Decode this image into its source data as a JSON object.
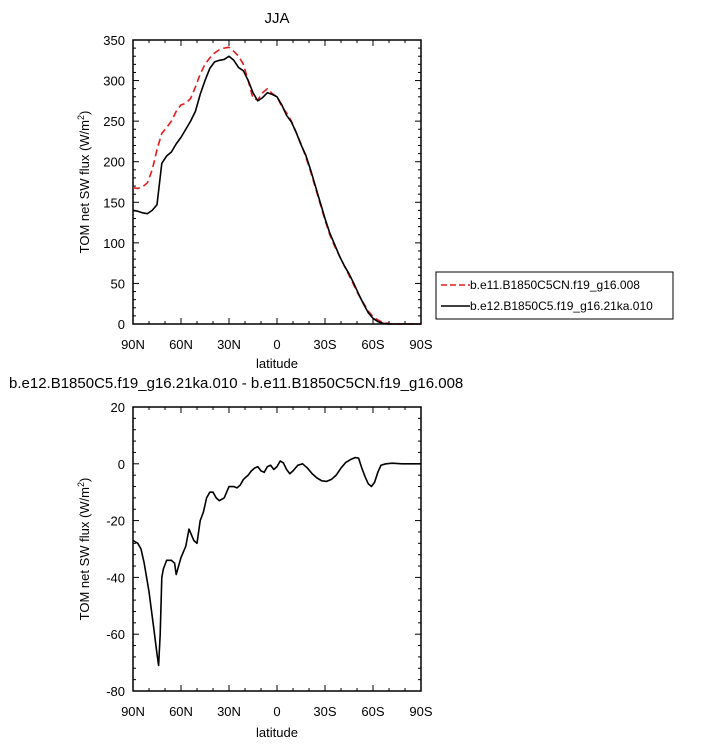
{
  "chart_data": [
    {
      "type": "line",
      "title": "JJA",
      "xlabel": "latitude",
      "ylabel": "TOM net SW flux (W/m",
      "ylabel_sup": "2",
      "ylabel_end": ")",
      "xlim": [
        90,
        -90
      ],
      "ylim": [
        0,
        350
      ],
      "x_ticks": [
        90,
        60,
        30,
        0,
        -30,
        -60,
        -90
      ],
      "x_tick_labels": [
        "90N",
        "60N",
        "30N",
        "0",
        "30S",
        "60S",
        "90S"
      ],
      "y_ticks": [
        0,
        50,
        100,
        150,
        200,
        250,
        300,
        350
      ],
      "y_tick_labels": [
        "0",
        "50",
        "100",
        "150",
        "200",
        "250",
        "300",
        "350"
      ],
      "grid": false,
      "legend_position": "right",
      "series": [
        {
          "name": "b.e11.B1850C5CN.f19_g16.008",
          "color": "#e41a1c",
          "dash": "dashed",
          "x": [
            90,
            87,
            84,
            81,
            78,
            75,
            72,
            69,
            66,
            63,
            60,
            57,
            54,
            51,
            48,
            45,
            42,
            39,
            36,
            33,
            30,
            27,
            24,
            21,
            18,
            15,
            12,
            9,
            6,
            3,
            0,
            -3,
            -6,
            -9,
            -12,
            -15,
            -18,
            -21,
            -24,
            -27,
            -30,
            -33,
            -36,
            -39,
            -42,
            -45,
            -48,
            -51,
            -54,
            -57,
            -60,
            -63,
            -66,
            -69,
            -72,
            -75,
            -78,
            -81,
            -84,
            -87,
            -90
          ],
          "y": [
            168,
            167,
            169,
            174,
            190,
            215,
            235,
            242,
            250,
            262,
            270,
            272,
            278,
            292,
            308,
            320,
            328,
            334,
            338,
            340,
            341,
            336,
            330,
            320,
            300,
            278,
            276,
            285,
            290,
            284,
            280,
            268,
            260,
            250,
            236,
            222,
            206,
            188,
            168,
            148,
            128,
            110,
            96,
            84,
            72,
            60,
            48,
            36,
            26,
            16,
            9,
            5,
            2,
            1,
            0,
            0,
            0,
            0,
            0,
            0,
            0
          ]
        },
        {
          "name": "b.e12.B1850C5.f19_g16.21ka.010",
          "color": "#000000",
          "dash": "solid",
          "x": [
            90,
            87,
            84,
            81,
            78,
            75,
            72,
            69,
            66,
            63,
            60,
            57,
            54,
            51,
            48,
            45,
            42,
            39,
            36,
            33,
            30,
            27,
            24,
            21,
            18,
            15,
            12,
            9,
            6,
            3,
            0,
            -3,
            -6,
            -9,
            -12,
            -15,
            -18,
            -21,
            -24,
            -27,
            -30,
            -33,
            -36,
            -39,
            -42,
            -45,
            -48,
            -51,
            -54,
            -57,
            -60,
            -63,
            -66,
            -69,
            -72,
            -75,
            -78,
            -81,
            -84,
            -87,
            -90
          ],
          "y": [
            140,
            139,
            137,
            136,
            140,
            147,
            198,
            207,
            212,
            222,
            230,
            240,
            250,
            262,
            283,
            300,
            315,
            323,
            325,
            326,
            330,
            325,
            316,
            312,
            300,
            285,
            275,
            279,
            285,
            283,
            280,
            270,
            257,
            249,
            236,
            221,
            208,
            190,
            170,
            150,
            130,
            112,
            98,
            84,
            72,
            62,
            50,
            37,
            25,
            14,
            7,
            3,
            1,
            0,
            0,
            0,
            0,
            0,
            0,
            0,
            0
          ]
        }
      ]
    },
    {
      "type": "line",
      "title": "b.e12.B1850C5.f19_g16.21ka.010 - b.e11.B1850C5CN.f19_g16.008",
      "xlabel": "latitude",
      "ylabel": "TOM net SW flux (W/m",
      "ylabel_sup": "2",
      "ylabel_end": ")",
      "xlim": [
        90,
        -90
      ],
      "ylim": [
        -80,
        20
      ],
      "x_ticks": [
        90,
        60,
        30,
        0,
        -30,
        -60,
        -90
      ],
      "x_tick_labels": [
        "90N",
        "60N",
        "30N",
        "0",
        "30S",
        "60S",
        "90S"
      ],
      "y_ticks": [
        -80,
        -60,
        -40,
        -20,
        0,
        20
      ],
      "y_tick_labels": [
        "-80",
        "-60",
        "-40",
        "-20",
        "0",
        "20"
      ],
      "grid": false,
      "series": [
        {
          "color": "#000000",
          "dash": "solid",
          "x": [
            90,
            87,
            85,
            83,
            80,
            77,
            75,
            74,
            73,
            72,
            71,
            69,
            66,
            64,
            63,
            60,
            57,
            55,
            52,
            50,
            48,
            46,
            44,
            42,
            40,
            38,
            36,
            33,
            30,
            27,
            25,
            23,
            21,
            18,
            16,
            14,
            12,
            10,
            8,
            6,
            4,
            2,
            0,
            -2,
            -4,
            -6,
            -8,
            -10,
            -13,
            -16,
            -19,
            -22,
            -25,
            -28,
            -31,
            -34,
            -37,
            -40,
            -43,
            -46,
            -49,
            -51,
            -53,
            -55,
            -57,
            -59,
            -61,
            -63,
            -65,
            -68,
            -72,
            -78,
            -84,
            -90
          ],
          "y": [
            -27,
            -28,
            -30,
            -35,
            -45,
            -58,
            -67,
            -71,
            -60,
            -40,
            -37,
            -34,
            -34,
            -35,
            -39,
            -33,
            -29,
            -23,
            -27,
            -28,
            -20,
            -17,
            -12,
            -10,
            -10,
            -12,
            -13,
            -12,
            -8,
            -8,
            -8.5,
            -7.5,
            -5.5,
            -4,
            -2.5,
            -1.5,
            -1,
            -2.5,
            -3,
            -1,
            -0.5,
            -2,
            -1,
            1,
            0.3,
            -2,
            -3.5,
            -2.5,
            -0.5,
            0,
            -1.5,
            -3.5,
            -5,
            -6,
            -6.2,
            -5.5,
            -4,
            -1.5,
            0.5,
            1.5,
            2.2,
            2,
            -1.5,
            -4.5,
            -7,
            -8,
            -6.5,
            -3,
            -0.5,
            0,
            0.2,
            0,
            0,
            0
          ]
        }
      ]
    }
  ]
}
